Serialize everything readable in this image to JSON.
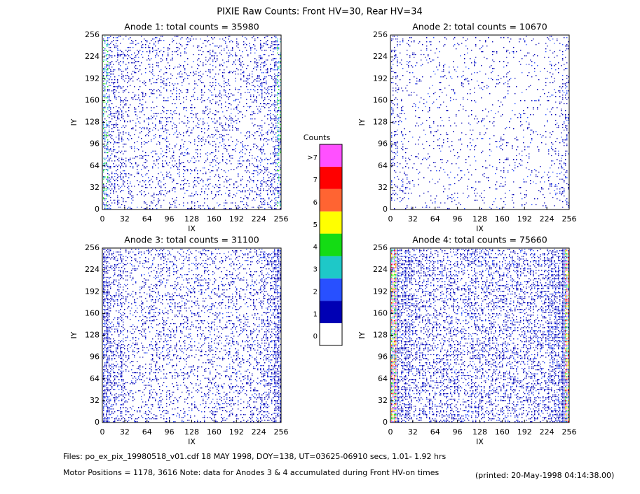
{
  "title": "PIXIE Raw Counts:  Front HV=30, Rear HV=34",
  "chart_data": [
    {
      "type": "heatmap",
      "title": "Anode 1: total counts = 35980",
      "xlabel": "IX",
      "ylabel": "IY",
      "xlim": [
        0,
        256
      ],
      "ylim": [
        0,
        256
      ],
      "xticks": [
        0,
        32,
        64,
        96,
        128,
        160,
        192,
        224,
        256
      ],
      "yticks": [
        0,
        32,
        64,
        96,
        128,
        160,
        192,
        224,
        256
      ]
    },
    {
      "type": "heatmap",
      "title": "Anode 2: total counts = 10670",
      "xlabel": "IX",
      "ylabel": "IY",
      "xlim": [
        0,
        256
      ],
      "ylim": [
        0,
        256
      ],
      "xticks": [
        0,
        32,
        64,
        96,
        128,
        160,
        192,
        224,
        256
      ],
      "yticks": [
        0,
        32,
        64,
        96,
        128,
        160,
        192,
        224,
        256
      ]
    },
    {
      "type": "heatmap",
      "title": "Anode 3: total counts = 31100",
      "xlabel": "IX",
      "ylabel": "IY",
      "xlim": [
        0,
        256
      ],
      "ylim": [
        0,
        256
      ],
      "xticks": [
        0,
        32,
        64,
        96,
        128,
        160,
        192,
        224,
        256
      ],
      "yticks": [
        0,
        32,
        64,
        96,
        128,
        160,
        192,
        224,
        256
      ]
    },
    {
      "type": "heatmap",
      "title": "Anode 4: total counts = 75660",
      "xlabel": "IX",
      "ylabel": "IY",
      "xlim": [
        0,
        256
      ],
      "ylim": [
        0,
        256
      ],
      "xticks": [
        0,
        32,
        64,
        96,
        128,
        160,
        192,
        224,
        256
      ],
      "yticks": [
        0,
        32,
        64,
        96,
        128,
        160,
        192,
        224,
        256
      ]
    }
  ],
  "colorbar": {
    "title": "Counts",
    "levels": [
      {
        "label": "0",
        "color": "#ffffff"
      },
      {
        "label": "1",
        "color": "#0000b4"
      },
      {
        "label": "2",
        "color": "#2850ff"
      },
      {
        "label": "3",
        "color": "#1ec8c8"
      },
      {
        "label": "4",
        "color": "#14dc14"
      },
      {
        "label": "5",
        "color": "#ffff00"
      },
      {
        "label": "6",
        "color": "#ff6432"
      },
      {
        "label": "7",
        "color": "#ff0000"
      },
      {
        "label": ">7",
        "color": "#ff50ff"
      }
    ]
  },
  "footer": {
    "files": "Files: po_ex_pix_19980518_v01.cdf    18 MAY 1998, DOY=138, UT=03625-06910 secs,  1.01- 1.92 hrs",
    "motor": "Motor Positions = 1178, 3616    Note: data for Anodes 3 & 4 accumulated during Front HV-on times",
    "printed": "(printed: 20-May-1998 04:14:38.00)"
  }
}
